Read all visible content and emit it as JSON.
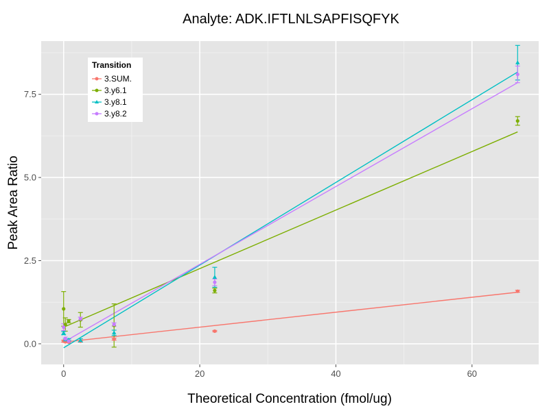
{
  "chart_data": {
    "type": "scatter",
    "title": "Analyte: ADK.IFTLNLSAPFISQFYK",
    "xlabel": "Theoretical Concentration (fmol/ug)",
    "ylabel": "Peak Area Ratio",
    "xlim": [
      -3.3,
      69.8
    ],
    "ylim": [
      -0.62,
      9.1
    ],
    "x_ticks": [
      0,
      20,
      40,
      60
    ],
    "y_ticks": [
      0.0,
      2.5,
      5.0,
      7.5
    ],
    "x_tick_labels": [
      "0",
      "20",
      "40",
      "60"
    ],
    "y_tick_labels": [
      "0.0",
      "2.5",
      "5.0",
      "7.5"
    ],
    "grid": true,
    "legend": {
      "title": "Transition",
      "position": "top-left"
    },
    "series": [
      {
        "name": "3.SUM.",
        "color": "#F8766D",
        "marker": "circle",
        "points": [
          {
            "x": 0.0,
            "y": 0.08,
            "err": 0.03
          },
          {
            "x": 0.25,
            "y": 0.06,
            "err": 0.02
          },
          {
            "x": 0.74,
            "y": 0.05,
            "err": 0.02
          },
          {
            "x": 2.47,
            "y": 0.08,
            "err": 0.02
          },
          {
            "x": 7.41,
            "y": 0.14,
            "err": 0.03
          },
          {
            "x": 22.2,
            "y": 0.38,
            "err": 0.02
          },
          {
            "x": 66.7,
            "y": 1.58,
            "err": 0.03
          }
        ],
        "fit": [
          [
            0.0,
            0.05
          ],
          [
            66.7,
            1.55
          ]
        ]
      },
      {
        "name": "3.y6.1",
        "color": "#7CAE00",
        "marker": "circle",
        "points": [
          {
            "x": 0.0,
            "y": 1.05,
            "err": 0.52
          },
          {
            "x": 0.25,
            "y": 0.58,
            "err": 0.2
          },
          {
            "x": 0.74,
            "y": 0.68,
            "err": 0.05
          },
          {
            "x": 2.47,
            "y": 0.72,
            "err": 0.22
          },
          {
            "x": 7.41,
            "y": 0.55,
            "err": 0.65
          },
          {
            "x": 22.2,
            "y": 1.6,
            "err": 0.07
          },
          {
            "x": 66.7,
            "y": 6.7,
            "err": 0.13
          }
        ],
        "fit": [
          [
            0.0,
            0.5
          ],
          [
            66.7,
            6.37
          ]
        ]
      },
      {
        "name": "3.y8.1",
        "color": "#00BFC4",
        "marker": "triangle",
        "points": [
          {
            "x": 0.0,
            "y": 0.32,
            "err": 0.05
          },
          {
            "x": 0.25,
            "y": 0.12,
            "err": 0.03
          },
          {
            "x": 0.74,
            "y": 0.12,
            "err": 0.03
          },
          {
            "x": 2.47,
            "y": 0.1,
            "err": 0.05
          },
          {
            "x": 7.41,
            "y": 0.33,
            "err": 0.08
          },
          {
            "x": 22.2,
            "y": 2.0,
            "err": 0.3
          },
          {
            "x": 66.7,
            "y": 8.45,
            "err": 0.52
          }
        ],
        "fit": [
          [
            0.0,
            -0.12
          ],
          [
            66.7,
            8.17
          ]
        ]
      },
      {
        "name": "3.y8.2",
        "color": "#C77CFF",
        "marker": "circle",
        "points": [
          {
            "x": 0.0,
            "y": 0.5,
            "err": 0.1
          },
          {
            "x": 0.25,
            "y": 0.15,
            "err": 0.05
          },
          {
            "x": 0.74,
            "y": 0.08,
            "err": 0.03
          },
          {
            "x": 2.47,
            "y": 0.75,
            "err": 0.05
          },
          {
            "x": 7.41,
            "y": 0.58,
            "err": 0.05
          },
          {
            "x": 22.2,
            "y": 1.85,
            "err": 0.1
          },
          {
            "x": 66.7,
            "y": 8.1,
            "err": 0.25
          }
        ],
        "fit": [
          [
            0.0,
            0.05
          ],
          [
            66.7,
            7.85
          ]
        ]
      }
    ]
  },
  "style": {
    "panel_bg": "#E5E5E5",
    "grid_major": "#FFFFFF",
    "grid_minor": "#F2F2F2",
    "tick_color": "#4D4D4D",
    "legend_bg": "#FFFFFF"
  }
}
